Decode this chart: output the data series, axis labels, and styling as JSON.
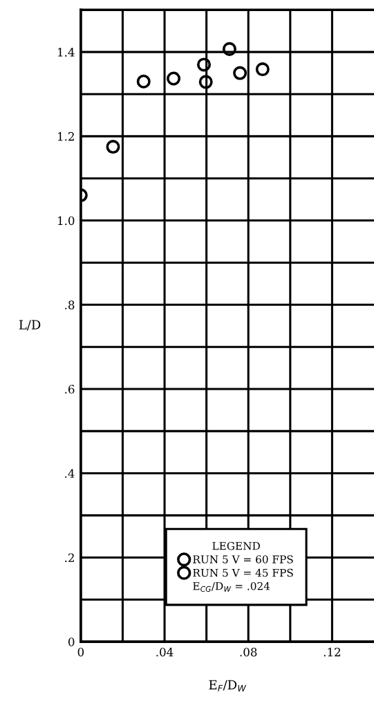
{
  "chart_data": {
    "type": "scatter",
    "xlabel": "E$_{F}$/D$_{W}$",
    "ylabel": "L/D",
    "legend_title": "LEGEND",
    "annotations": [
      "E$_{CG}$/D$_{W}$ = .024"
    ],
    "series": [
      {
        "name": "RUN 5 V = 60 FPS",
        "color": "#000000",
        "x": [
          0,
          0.0154,
          0.03,
          0.0443,
          0.0588,
          0.071,
          0.0868
        ],
        "values": [
          1.06,
          1.175,
          1.33,
          1.337,
          1.37,
          1.407,
          1.359
        ]
      },
      {
        "name": "RUN 5 V = 45 FPS",
        "color": "#000000",
        "x": [
          0.0597,
          0.076
        ],
        "values": [
          1.329,
          1.35
        ]
      }
    ],
    "marker": "circle",
    "xlim": [
      0,
      0.14
    ],
    "ylim": [
      0,
      1.5
    ],
    "xticks": [
      0,
      {
        "value": 0.02,
        "label": null
      },
      {
        "value": 0.04,
        "label": ".04"
      },
      {
        "value": 0.06,
        "label": null
      },
      {
        "value": 0.08,
        "label": ".08"
      },
      {
        "value": 0.1,
        "label": null
      },
      {
        "value": 0.12,
        "label": ".12"
      }
    ],
    "yticks": [
      0,
      {
        "value": 0.1,
        "label": null
      },
      {
        "value": 0.2,
        "label": ".2"
      },
      {
        "value": 0.3,
        "label": null
      },
      {
        "value": 0.4,
        "label": ".4"
      },
      {
        "value": 0.5,
        "label": null
      },
      {
        "value": 0.6,
        "label": ".6"
      },
      {
        "value": 0.7,
        "label": null
      },
      {
        "value": 0.8,
        "label": ".8"
      },
      {
        "value": 0.9,
        "label": null
      },
      {
        "value": 1.0,
        "label": "1.0"
      },
      {
        "value": 1.1,
        "label": null
      },
      {
        "value": 1.2,
        "label": "1.2"
      },
      {
        "value": 1.3,
        "label": null
      },
      {
        "value": 1.4,
        "label": "1.4"
      }
    ],
    "grid": true,
    "legend": "bottom"
  }
}
